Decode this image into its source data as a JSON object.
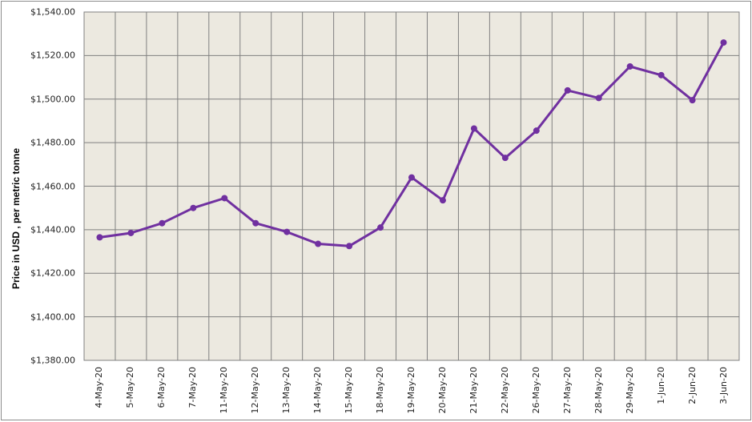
{
  "chart_data": {
    "type": "line",
    "title": "",
    "xlabel": "",
    "ylabel": "Price in USD , per metric tonne",
    "ylim": [
      1380,
      1540
    ],
    "ytick_step": 20,
    "yticks": [
      "$1,540.00",
      "$1,520.00",
      "$1,500.00",
      "$1,480.00",
      "$1,460.00",
      "$1,440.00",
      "$1,420.00",
      "$1,400.00",
      "$1,380.00"
    ],
    "grid": true,
    "legend": null,
    "categories": [
      "4-May-20",
      "5-May-20",
      "6-May-20",
      "7-May-20",
      "11-May-20",
      "12-May-20",
      "13-May-20",
      "14-May-20",
      "15-May-20",
      "18-May-20",
      "19-May-20",
      "20-May-20",
      "21-May-20",
      "22-May-20",
      "26-May-20",
      "27-May-20",
      "28-May-20",
      "29-May-20",
      "1-Jun-20",
      "2-Jun-20",
      "3-Jun-20"
    ],
    "series": [
      {
        "name": "Price",
        "color": "#7030a0",
        "values": [
          1436.5,
          1438.5,
          1443.0,
          1450.0,
          1454.5,
          1443.0,
          1439.0,
          1433.5,
          1432.5,
          1441.0,
          1464.0,
          1453.5,
          1486.5,
          1473.0,
          1485.5,
          1504.0,
          1500.5,
          1515.0,
          1511.0,
          1499.5,
          1526.0
        ]
      }
    ],
    "colors": {
      "plot_background": "#ece9e0",
      "gridline": "#808080",
      "line": "#7030a0"
    }
  }
}
